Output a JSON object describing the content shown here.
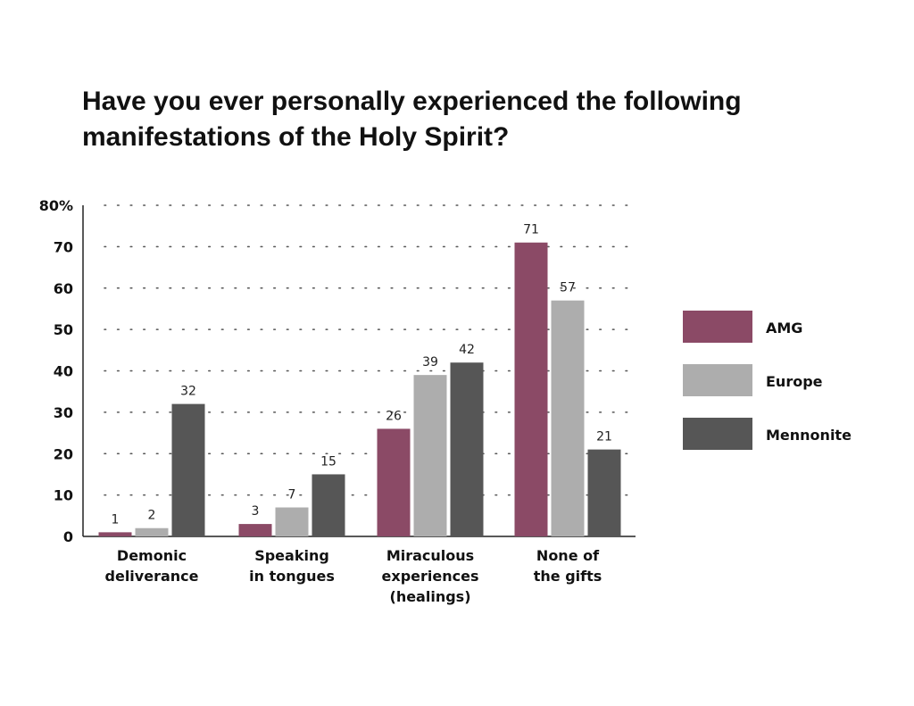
{
  "chart_data": {
    "type": "bar",
    "title_lines": [
      "Have you ever personally experienced the following",
      "manifestations of the Holy Spirit?"
    ],
    "categories": [
      [
        "Demonic",
        "deliverance"
      ],
      [
        "Speaking",
        "in tongues"
      ],
      [
        "Miraculous",
        "experiences",
        "(healings)"
      ],
      [
        "None of",
        "the gifts"
      ]
    ],
    "series": [
      {
        "name": "AMG",
        "color": "#8b4a66",
        "values": [
          1,
          3,
          26,
          71
        ]
      },
      {
        "name": "Europe",
        "color": "#adadad",
        "values": [
          2,
          7,
          39,
          57
        ]
      },
      {
        "name": "Mennonite",
        "color": "#565656",
        "values": [
          32,
          15,
          42,
          21
        ]
      }
    ],
    "yticks": [
      "0",
      "10",
      "20",
      "30",
      "40",
      "50",
      "60",
      "70",
      "80%"
    ],
    "ylim": [
      0,
      80
    ],
    "grid": "dotted",
    "legend_position": "right"
  }
}
